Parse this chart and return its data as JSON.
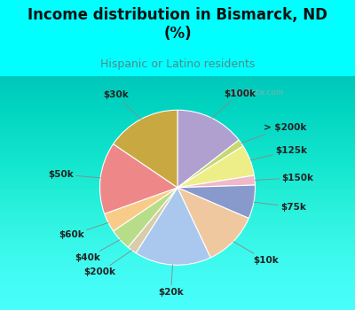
{
  "title": "Income distribution in Bismarck, ND\n(%)",
  "subtitle": "Hispanic or Latino residents",
  "background_top": "#00FFFF",
  "labels": [
    "$100k",
    "> $200k",
    "$125k",
    "$150k",
    "$75k",
    "$10k",
    "$20k",
    "$200k",
    "$40k",
    "$60k",
    "$50k",
    "$30k"
  ],
  "values": [
    14.5,
    1.5,
    6.5,
    2.0,
    7.0,
    11.5,
    16.0,
    2.0,
    4.5,
    4.0,
    15.0,
    15.5
  ],
  "colors": [
    "#b0a0d0",
    "#c8d870",
    "#eeee88",
    "#f0b8c8",
    "#8899cc",
    "#f0c8a0",
    "#aac8ee",
    "#d8ccaa",
    "#b8dd88",
    "#f8cc88",
    "#ee8888",
    "#c8a840"
  ],
  "watermark": "City-Data.com",
  "label_color": "#222222",
  "title_color": "#111111",
  "subtitle_color": "#558888"
}
